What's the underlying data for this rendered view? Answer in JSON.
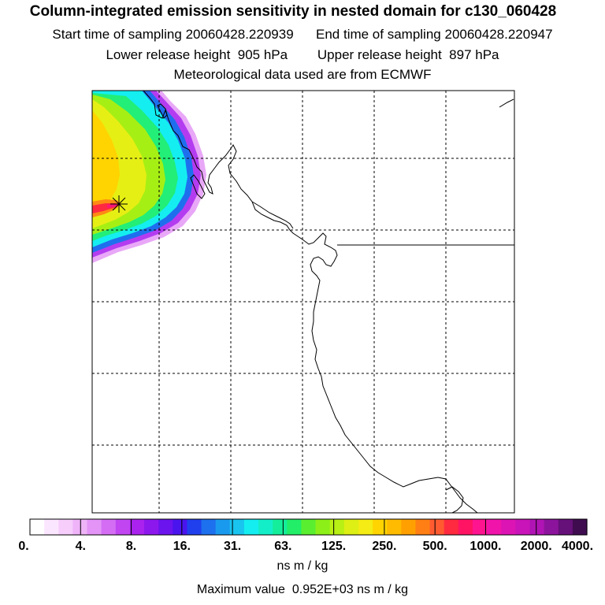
{
  "title": "Column-integrated emission sensitivity in nested domain for c130_060428",
  "sampling": {
    "start_label": "Start time of sampling",
    "start_value": "20060428.220939",
    "end_label": "End time of sampling",
    "end_value": "20060428.220947"
  },
  "release": {
    "lower_label": "Lower release height",
    "lower_value": "905 hPa",
    "upper_label": "Upper release height",
    "upper_value": "897 hPa"
  },
  "met_line": "Meteorological data used are from ECMWF",
  "colorbar": {
    "tick_labels": [
      "0.",
      "4.",
      "8.",
      "16.",
      "31.",
      "63.",
      "125.",
      "250.",
      "500.",
      "1000.",
      "2000.",
      "4000."
    ],
    "units": "ns m / kg",
    "colors": [
      "#ffffff",
      "#fbe6ff",
      "#f6cdfb",
      "#efb3f8",
      "#e394f6",
      "#d46df4",
      "#c146f2",
      "#aa22ee",
      "#8d18ee",
      "#6b14ee",
      "#4a14ee",
      "#2040ee",
      "#1d70ee",
      "#1a9aef",
      "#19c4ef",
      "#14eef0",
      "#14eec8",
      "#14ee9a",
      "#22ee68",
      "#5aee30",
      "#8cef18",
      "#b8ef14",
      "#ddef14",
      "#f4ec14",
      "#ffd400",
      "#ffbb00",
      "#ffa000",
      "#ff7f14",
      "#ff5a30",
      "#ff2a40",
      "#ff1464",
      "#ff1490",
      "#f014aa",
      "#dd14b4",
      "#c814b8",
      "#b014b4",
      "#8c149c",
      "#66107a",
      "#400c50"
    ]
  },
  "max_value": {
    "label": "Maximum value",
    "value": "0.952E+03",
    "units": "ns m / kg"
  },
  "map": {
    "release_marker": "release-point",
    "gridlines": "dashed",
    "colors": {
      "frame": "#000000",
      "coast": "#000000"
    }
  }
}
